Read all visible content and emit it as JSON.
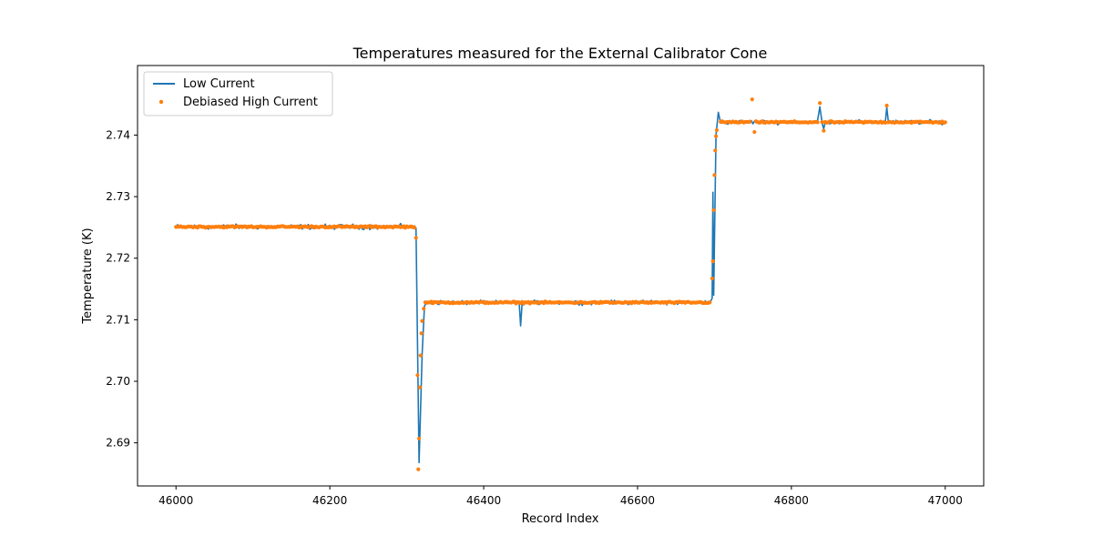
{
  "chart_data": {
    "type": "line",
    "title": "Temperatures measured for the External Calibrator Cone",
    "xlabel": "Record Index",
    "ylabel": "Temperature (K)",
    "xlim": [
      45950,
      47050
    ],
    "ylim": [
      2.683,
      2.7513
    ],
    "x_ticks": [
      46000,
      46200,
      46400,
      46600,
      46800,
      47000
    ],
    "y_ticks": [
      2.69,
      2.7,
      2.71,
      2.72,
      2.73,
      2.74
    ],
    "x_tick_labels": [
      "46000",
      "46200",
      "46400",
      "46600",
      "46800",
      "47000"
    ],
    "y_tick_labels": [
      "2.69",
      "2.70",
      "2.71",
      "2.72",
      "2.73",
      "2.74"
    ],
    "grid": false,
    "legend_position": "top-left",
    "series": [
      {
        "name": "Low Current",
        "kind": "line",
        "color": "#1f77b4",
        "levels": [
          {
            "x": [
              46000,
              46312
            ],
            "mean": 2.7251,
            "noise": 0.0006
          },
          {
            "x": [
              46320,
              46697
            ],
            "mean": 2.7128,
            "noise": 0.0005
          },
          {
            "x": [
              46708,
              47000
            ],
            "mean": 2.7421,
            "noise": 0.0005
          }
        ],
        "key_points": [
          {
            "x": 46312,
            "y": 2.7249
          },
          {
            "x": 46316,
            "y": 2.6868
          },
          {
            "x": 46320,
            "y": 2.7045
          },
          {
            "x": 46323,
            "y": 2.7122
          },
          {
            "x": 46448,
            "y": 2.709
          },
          {
            "x": 46697,
            "y": 2.7135
          },
          {
            "x": 46698,
            "y": 2.7307
          },
          {
            "x": 46699,
            "y": 2.714
          },
          {
            "x": 46702,
            "y": 2.74
          },
          {
            "x": 46705,
            "y": 2.7437
          },
          {
            "x": 46837,
            "y": 2.7446
          },
          {
            "x": 46842,
            "y": 2.741
          },
          {
            "x": 46924,
            "y": 2.7445
          },
          {
            "x": 47000,
            "y": 2.742
          }
        ]
      },
      {
        "name": "Debiased High Current",
        "kind": "scatter",
        "color": "#ff7f0e",
        "levels": [
          {
            "x": [
              46000,
              46310
            ],
            "mean": 2.7251,
            "noise": 0.0002
          },
          {
            "x": [
              46324,
              46697
            ],
            "mean": 2.7128,
            "noise": 0.0002
          },
          {
            "x": [
              46708,
              47000
            ],
            "mean": 2.7421,
            "noise": 0.0002
          }
        ],
        "key_points": [
          {
            "x": 46312,
            "y": 2.7233
          },
          {
            "x": 46314,
            "y": 2.701
          },
          {
            "x": 46315,
            "y": 2.6857
          },
          {
            "x": 46316,
            "y": 2.6907
          },
          {
            "x": 46317,
            "y": 2.699
          },
          {
            "x": 46318,
            "y": 2.7042
          },
          {
            "x": 46319,
            "y": 2.7078
          },
          {
            "x": 46320,
            "y": 2.7098
          },
          {
            "x": 46322,
            "y": 2.7118
          },
          {
            "x": 46697,
            "y": 2.7167
          },
          {
            "x": 46698,
            "y": 2.7195
          },
          {
            "x": 46699,
            "y": 2.7278
          },
          {
            "x": 46700,
            "y": 2.7335
          },
          {
            "x": 46701,
            "y": 2.7375
          },
          {
            "x": 46702,
            "y": 2.7398
          },
          {
            "x": 46703,
            "y": 2.7408
          },
          {
            "x": 46749,
            "y": 2.7458
          },
          {
            "x": 46752,
            "y": 2.7405
          },
          {
            "x": 46837,
            "y": 2.7452
          },
          {
            "x": 46842,
            "y": 2.7407
          },
          {
            "x": 46924,
            "y": 2.7448
          }
        ]
      }
    ]
  }
}
